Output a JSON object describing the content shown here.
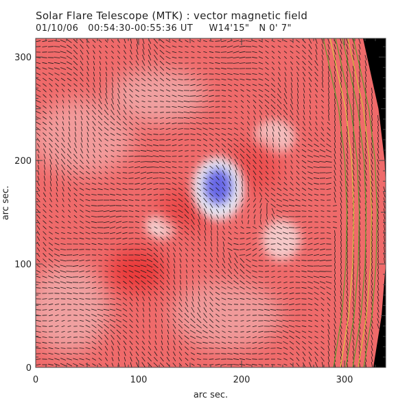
{
  "chart_data": {
    "type": "vector-magnetogram",
    "title": "Solar Flare Telescope (MTK) : vector magnetic field",
    "subtitle": "01/10/06   00:54:30-00:55:36 UT     W14'15\"   N 0' 7\"",
    "xlabel": "arc sec.",
    "ylabel": "arc sec.",
    "xlim": [
      0,
      340
    ],
    "ylim": [
      0,
      318
    ],
    "xticks": [
      0,
      100,
      200,
      300
    ],
    "yticks": [
      0,
      100,
      200,
      300
    ],
    "limb_x": [
      [
        0,
        328
      ],
      [
        50,
        336
      ],
      [
        100,
        340
      ],
      [
        150,
        341
      ],
      [
        200,
        339
      ],
      [
        250,
        333
      ],
      [
        300,
        322
      ],
      [
        318,
        318
      ]
    ],
    "colors": {
      "positive": "#ef5a5a",
      "negative": "#5a5ae6",
      "neutral": "#e8e8ee",
      "limb": "#000000",
      "contour": "#58a02a",
      "vectors": "#111111"
    }
  }
}
